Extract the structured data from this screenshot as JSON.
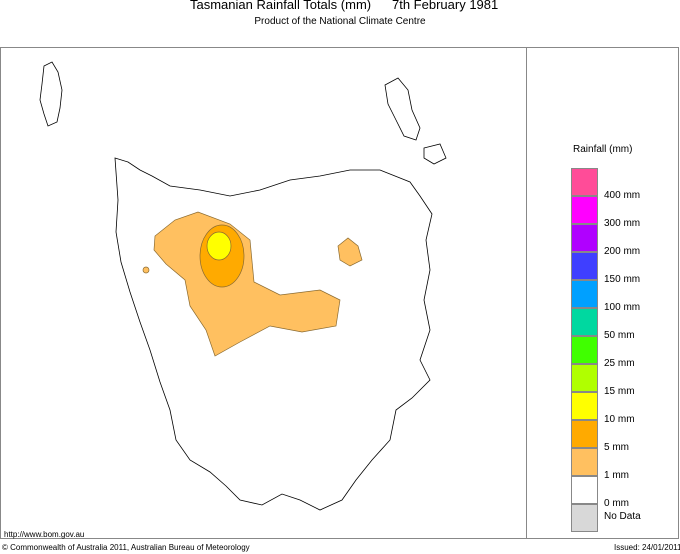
{
  "header": {
    "title": "Tasmanian Rainfall Totals (mm)",
    "date": "7th February 1981",
    "subtitle": "Product of the National Climate Centre"
  },
  "legend": {
    "title": "Rainfall (mm)",
    "colors": [
      "#ff4c98",
      "#ff00ff",
      "#b000ff",
      "#3f3fff",
      "#00a0ff",
      "#00d8a0",
      "#40ff00",
      "#b0ff00",
      "#ffff00",
      "#ffaa00",
      "#ffc060",
      "#ffffff",
      "#d8d8d8"
    ],
    "labels": [
      "400 mm",
      "300 mm",
      "200 mm",
      "150 mm",
      "100 mm",
      "50 mm",
      "25 mm",
      "15 mm",
      "10 mm",
      "5 mm",
      "1 mm",
      "0 mm",
      "No Data"
    ]
  },
  "map": {
    "region": "Tasmania",
    "rain_colors": {
      "1-5 mm": "#ffc060",
      "5-10 mm": "#ffaa00",
      "10-15 mm": "#ffff00"
    }
  },
  "footer": {
    "url": "http://www.bom.gov.au",
    "copyright": "© Commonwealth of Australia 2011, Australian Bureau of Meteorology",
    "issued": "Issued: 24/01/2011"
  }
}
